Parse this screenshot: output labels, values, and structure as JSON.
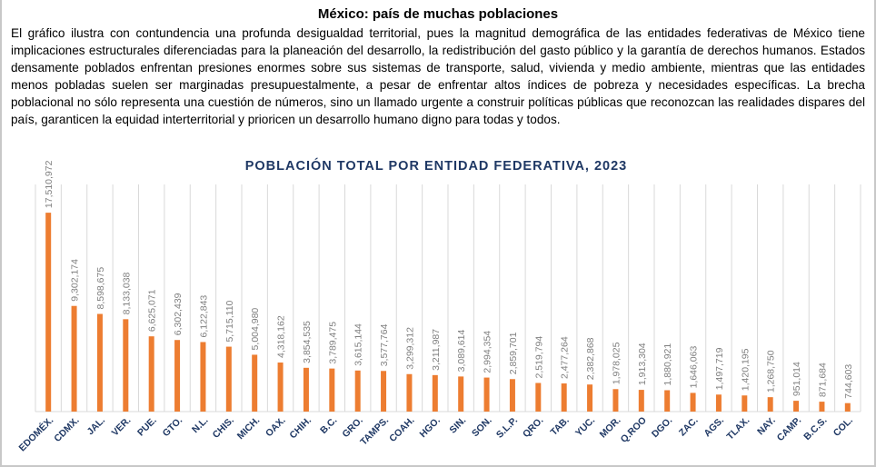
{
  "header": {
    "title": "México: país de muchas poblaciones",
    "paragraph": "El gráfico ilustra con contundencia una profunda desigualdad territorial, pues la magnitud demográfica de las entidades federativas de México tiene implicaciones estructurales diferenciadas para la planeación del desarrollo, la redistribución del gasto público y la garantía de derechos humanos. Estados densamente poblados enfrentan presiones enormes sobre sus sistemas de transporte, salud, vivienda y medio ambiente, mientras que las entidades menos pobladas suelen ser marginadas presupuestalmente, a pesar de enfrentar altos índices de pobreza y necesidades específicas. La brecha poblacional no sólo representa una cuestión de números, sino un llamado urgente a construir políticas públicas que reconozcan las realidades dispares del país, garanticen la equidad interterritorial y prioricen un desarrollo humano digno para todas y todos."
  },
  "chart_data": {
    "type": "bar",
    "title": "POBLACIÓN TOTAL POR ENTIDAD FEDERATIVA, 2023",
    "xlabel": "",
    "ylabel": "",
    "ylim": [
      0,
      20000000
    ],
    "grid": "vertical category separators",
    "legend": "none",
    "bar_color": "#ed7d31",
    "label_color": "#7f7f7f",
    "category_color": "#1f3864",
    "title_color": "#1f3864",
    "categories": [
      "EDOMÉX.",
      "CDMX.",
      "JAL.",
      "VER.",
      "PUE.",
      "GTO.",
      "N.L.",
      "CHIS.",
      "MICH.",
      "OAX.",
      "CHIH.",
      "B.C.",
      "GRO.",
      "TAMPS.",
      "COAH.",
      "HGO.",
      "SIN.",
      "SON.",
      "S.L.P.",
      "QRO.",
      "TAB.",
      "YUC.",
      "MOR.",
      "Q.ROO",
      "DGO.",
      "ZAC.",
      "AGS.",
      "TLAX.",
      "NAY.",
      "CAMP.",
      "B.C.S.",
      "COL."
    ],
    "values": [
      17510972,
      9302174,
      8598675,
      8133038,
      6625071,
      6302439,
      6122843,
      5715110,
      5004980,
      4318162,
      3854535,
      3789475,
      3615144,
      3577764,
      3299312,
      3211987,
      3089614,
      2994354,
      2859701,
      2519794,
      2477264,
      2382868,
      1978025,
      1913304,
      1880921,
      1646063,
      1497719,
      1420195,
      1268750,
      951014,
      871684,
      744603
    ],
    "data_labels": [
      "17,510,972",
      "9,302,174",
      "8,598,675",
      "8,133,038",
      "6,625,071",
      "6,302,439",
      "6,122,843",
      "5,715,110",
      "5,004,980",
      "4,318,162",
      "3,854,535",
      "3,789,475",
      "3,615,144",
      "3,577,764",
      "3,299,312",
      "3,211,987",
      "3,089,614",
      "2,994,354",
      "2,859,701",
      "2,519,794",
      "2,477,264",
      "2,382,868",
      "1,978,025",
      "1,913,304",
      "1,880,921",
      "1,646,063",
      "1,497,719",
      "1,420,195",
      "1,268,750",
      "951,014",
      "871,684",
      "744,603"
    ]
  }
}
